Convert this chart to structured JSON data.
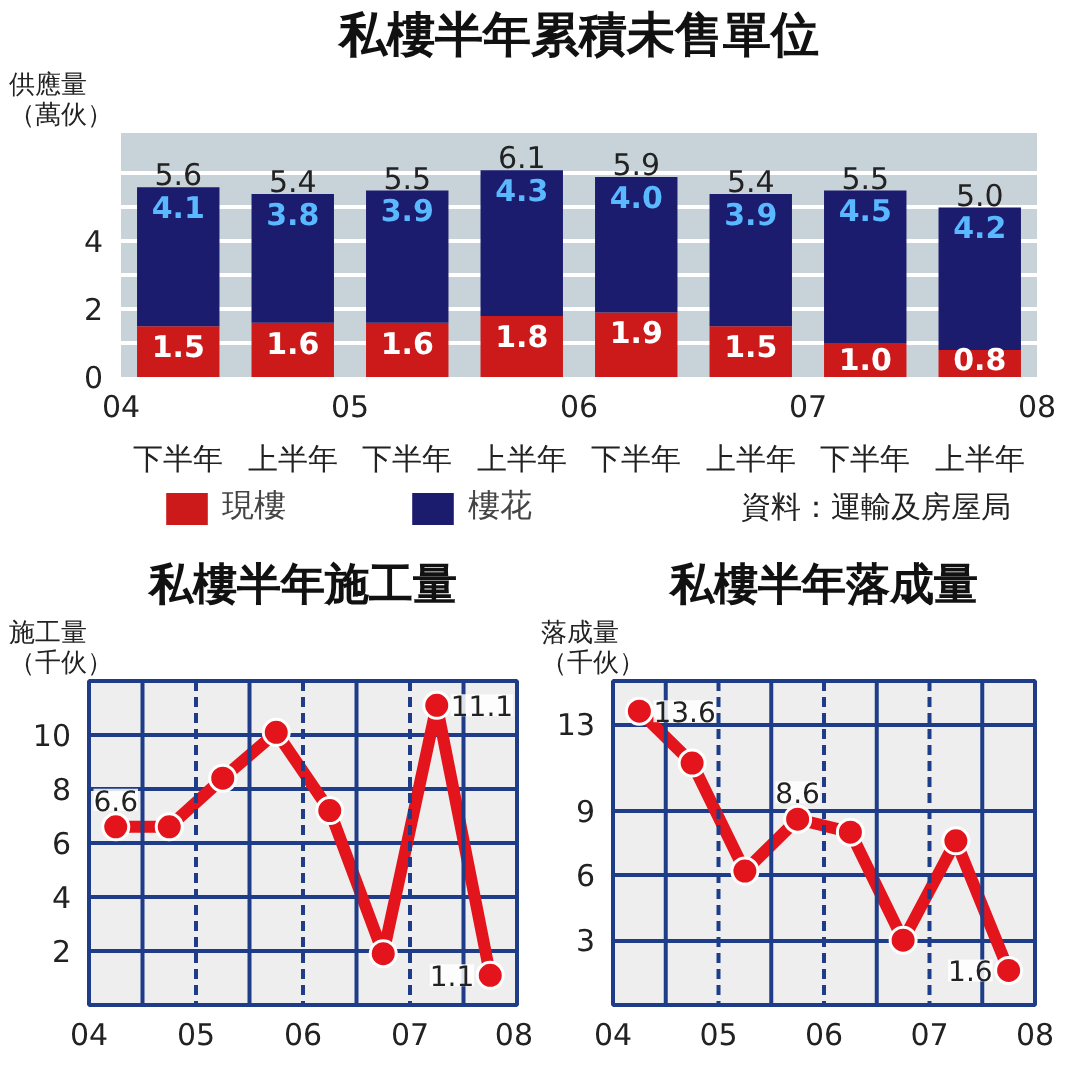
{
  "chart_data": [
    {
      "type": "bar",
      "title": "私樓半年累積未售單位",
      "ylabel": "供應量（萬伙）",
      "categories": [
        "下半年",
        "上半年",
        "下半年",
        "上半年",
        "下半年",
        "上半年",
        "下半年",
        "上半年"
      ],
      "x2lim": [
        4,
        8
      ],
      "x2ticks": [
        {
          "value": 4,
          "label": "04"
        },
        {
          "value": 5,
          "label": "05"
        },
        {
          "value": 6,
          "label": "06"
        },
        {
          "value": 7,
          "label": "07"
        },
        {
          "value": 8,
          "label": "08"
        }
      ],
      "ylim": [
        0,
        7.2
      ],
      "yticks": [
        0,
        {
          "value": 1,
          "label": null
        },
        2,
        {
          "value": 3,
          "label": null
        },
        4,
        {
          "value": 5,
          "label": null
        },
        {
          "value": 6,
          "label": null
        }
      ],
      "stacked": true,
      "series": [
        {
          "name": "現樓",
          "color": "#cc1a1a",
          "values": [
            1.5,
            1.6,
            1.6,
            1.8,
            1.9,
            1.5,
            1.0,
            0.8
          ],
          "value_labels": [
            "1.5",
            "1.6",
            "1.6",
            "1.8",
            "1.9",
            "1.5",
            "1.0",
            "0.8"
          ]
        },
        {
          "name": "樓花",
          "color": "#1c1c6e",
          "values": [
            4.1,
            3.8,
            3.9,
            4.3,
            4.0,
            3.9,
            4.5,
            4.2
          ],
          "value_labels": [
            "4.1",
            "3.8",
            "3.9",
            "4.3",
            "4.0",
            "3.9",
            "4.5",
            "4.2"
          ]
        }
      ],
      "totals": [
        "5.6",
        "5.4",
        "5.5",
        "6.1",
        "5.9",
        "5.4",
        "5.5",
        "5.0"
      ],
      "grid": "y",
      "legend": "bottom",
      "annotations": [
        "資料：運輸及房屋局"
      ]
    },
    {
      "type": "line",
      "title": "私樓半年施工量",
      "ylabel": "施工量（千伙）",
      "x": [
        4.25,
        4.75,
        5.25,
        5.75,
        6.25,
        6.75,
        7.25,
        7.75
      ],
      "xlim": [
        4,
        8
      ],
      "xticks": [
        {
          "value": 4,
          "label": "04"
        },
        {
          "value": 5,
          "label": "05"
        },
        {
          "value": 6,
          "label": "06"
        },
        {
          "value": 7,
          "label": "07"
        },
        {
          "value": 8,
          "label": "08"
        }
      ],
      "ylim": [
        0,
        12
      ],
      "yticks": [
        2,
        4,
        6,
        8,
        10
      ],
      "series": [
        {
          "color": "#e3141b",
          "values": [
            6.6,
            6.6,
            8.4,
            10.1,
            7.2,
            1.9,
            11.1,
            1.1
          ],
          "value_labels": [
            "6.6",
            null,
            null,
            null,
            null,
            null,
            "11.1",
            "1.1"
          ]
        }
      ],
      "marker": "circle",
      "grid": "y",
      "ref_lines": [
        {
          "axis": "x",
          "value": 4.5,
          "color": "#1f3c88"
        },
        {
          "axis": "x",
          "value": 5,
          "color": "#1f3c88",
          "line_style": "dashed"
        },
        {
          "axis": "x",
          "value": 5.5,
          "color": "#1f3c88"
        },
        {
          "axis": "x",
          "value": 6,
          "color": "#1f3c88",
          "line_style": "dashed"
        },
        {
          "axis": "x",
          "value": 6.5,
          "color": "#1f3c88"
        },
        {
          "axis": "x",
          "value": 7,
          "color": "#1f3c88",
          "line_style": "dashed"
        },
        {
          "axis": "x",
          "value": 7.5,
          "color": "#1f3c88"
        }
      ]
    },
    {
      "type": "line",
      "title": "私樓半年落成量",
      "ylabel": "落成量（千伙）",
      "x": [
        4.25,
        4.75,
        5.25,
        5.75,
        6.25,
        6.75,
        7.25,
        7.75
      ],
      "xlim": [
        4,
        8
      ],
      "xticks": [
        {
          "value": 4,
          "label": "04"
        },
        {
          "value": 5,
          "label": "05"
        },
        {
          "value": 6,
          "label": "06"
        },
        {
          "value": 7,
          "label": "07"
        },
        {
          "value": 8,
          "label": "08"
        }
      ],
      "ylim": [
        0,
        15
      ],
      "yticks": [
        3,
        6,
        9,
        13
      ],
      "series": [
        {
          "color": "#e3141b",
          "values": [
            13.6,
            11.2,
            6.2,
            8.6,
            8.0,
            3.0,
            7.6,
            1.6
          ],
          "value_labels": [
            "13.6",
            null,
            null,
            "8.6",
            null,
            null,
            null,
            "1.6"
          ]
        }
      ],
      "marker": "circle",
      "grid": "y",
      "ref_lines": [
        {
          "axis": "x",
          "value": 4.5,
          "color": "#1f3c88"
        },
        {
          "axis": "x",
          "value": 5,
          "color": "#1f3c88",
          "line_style": "dashed"
        },
        {
          "axis": "x",
          "value": 5.5,
          "color": "#1f3c88"
        },
        {
          "axis": "x",
          "value": 6,
          "color": "#1f3c88",
          "line_style": "dashed"
        },
        {
          "axis": "x",
          "value": 6.5,
          "color": "#1f3c88"
        },
        {
          "axis": "x",
          "value": 7,
          "color": "#1f3c88",
          "line_style": "dashed"
        },
        {
          "axis": "x",
          "value": 7.5,
          "color": "#1f3c88"
        }
      ]
    }
  ]
}
